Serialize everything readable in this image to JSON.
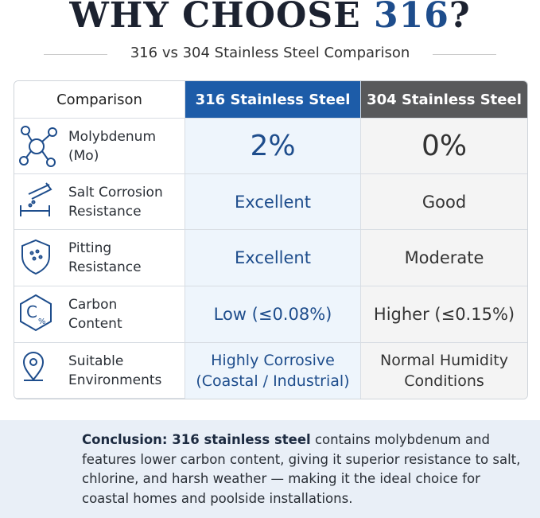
{
  "header": {
    "title": {
      "start": "WHY CHOOSE ",
      "highlight": "316",
      "end": "?"
    },
    "subtitle": "316 vs 304 Stainless Steel Comparison"
  },
  "table": {
    "columns": [
      "Comparison",
      "316 Stainless Steel",
      "304 Stainless Steel"
    ],
    "rows": [
      {
        "label": [
          "Molybdenum",
          "(Mo)"
        ],
        "a": [
          "2%"
        ],
        "b": [
          "0%"
        ]
      },
      {
        "label": [
          "Salt Corrosion",
          "Resistance"
        ],
        "a": [
          "Excellent"
        ],
        "b": [
          "Good"
        ]
      },
      {
        "label": [
          "Pitting",
          "Resistance"
        ],
        "a": [
          "Excellent"
        ],
        "b": [
          "Moderate"
        ]
      },
      {
        "label": [
          "Carbon",
          "Content"
        ],
        "a": [
          "Low (≤0.08%)"
        ],
        "b": [
          "Higher (≤0.15%)"
        ]
      },
      {
        "label": [
          "Suitable",
          "Environments"
        ],
        "a": [
          "Highly Corrosive",
          "(Coastal / Industrial)"
        ],
        "b": [
          "Normal Humidity",
          "Conditions"
        ]
      }
    ]
  },
  "conclusion": {
    "lead": "Conclusion: 316 stainless steel",
    "text": "contains molybdenum and features lower carbon content, giving it superior resistance to salt, chlorine, and harsh weather — making it the ideal choice for coastal homes and poolside installations."
  }
}
